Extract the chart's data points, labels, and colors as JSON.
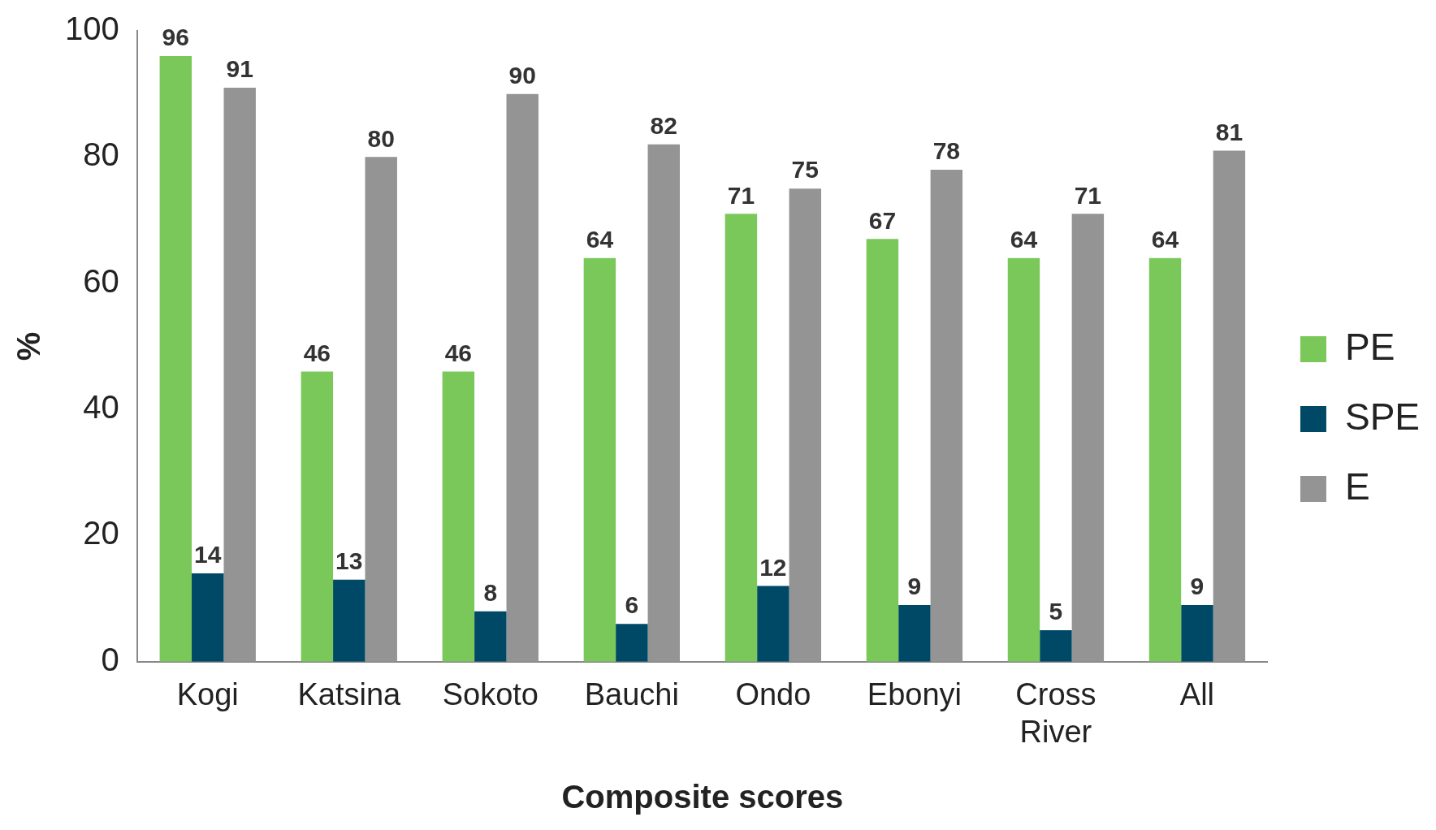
{
  "chart_data": {
    "type": "bar",
    "xlabel": "Composite scores",
    "ylabel": "%",
    "categories": [
      "Kogi",
      "Katsina",
      "Sokoto",
      "Bauchi",
      "Ondo",
      "Ebonyi",
      "Cross River",
      "All"
    ],
    "series": [
      {
        "name": "PE",
        "color": "#7ac75a",
        "values": [
          96,
          46,
          46,
          64,
          71,
          67,
          64,
          64
        ]
      },
      {
        "name": "SPE",
        "color": "#004966",
        "values": [
          14,
          13,
          8,
          6,
          12,
          9,
          5,
          9
        ]
      },
      {
        "name": "E",
        "color": "#949494",
        "values": [
          91,
          80,
          90,
          82,
          75,
          78,
          71,
          81
        ]
      }
    ],
    "ylim": [
      0,
      100
    ],
    "yticks": [
      0,
      20,
      40,
      60,
      80,
      100
    ],
    "grid": false,
    "legend": "right",
    "data_labels": true
  }
}
